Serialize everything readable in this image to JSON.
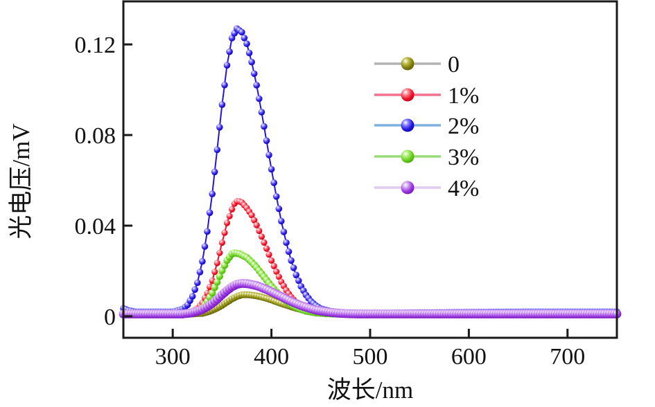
{
  "figure": {
    "background": "#ffffff",
    "frame_color": "#1a1a1a"
  },
  "chart_data": {
    "type": "line",
    "title": "",
    "xlabel": "波长/nm",
    "ylabel": "光电压/mV",
    "xlim": [
      250,
      750
    ],
    "ylim": [
      -0.0095,
      0.139
    ],
    "grid": false,
    "legend_position": "upper-right-inside",
    "x_ticks": [
      300,
      400,
      500,
      600,
      700
    ],
    "x_tick_labels": [
      "300",
      "400",
      "500",
      "600",
      "700"
    ],
    "y_ticks": [
      0,
      0.04,
      0.08,
      0.12
    ],
    "y_tick_labels": [
      "0",
      "0.04",
      "0.08",
      "0.12"
    ],
    "series": [
      {
        "name": "0",
        "peak_x_nm": 373,
        "peak_y_mV": 0.0095,
        "color": "#7d7d10",
        "color_light": "#bcbc42",
        "color_dark": "#565606",
        "legend_line_color": "#b3b3b3",
        "marker_radius": 5.0,
        "points": [
          [
            250,
            0.0008
          ],
          [
            310,
            0.0008
          ],
          [
            320,
            0.001
          ],
          [
            330,
            0.0013
          ],
          [
            335,
            0.0018
          ],
          [
            340,
            0.0026
          ],
          [
            345,
            0.0036
          ],
          [
            350,
            0.0048
          ],
          [
            355,
            0.0062
          ],
          [
            360,
            0.0076
          ],
          [
            365,
            0.0087
          ],
          [
            370,
            0.0094
          ],
          [
            373,
            0.0095
          ],
          [
            378,
            0.0094
          ],
          [
            385,
            0.009
          ],
          [
            390,
            0.0085
          ],
          [
            395,
            0.0079
          ],
          [
            400,
            0.0072
          ],
          [
            405,
            0.0064
          ],
          [
            410,
            0.0056
          ],
          [
            415,
            0.0049
          ],
          [
            420,
            0.0042
          ],
          [
            425,
            0.0035
          ],
          [
            430,
            0.003
          ],
          [
            435,
            0.0026
          ],
          [
            440,
            0.0022
          ],
          [
            450,
            0.0016
          ],
          [
            460,
            0.0012
          ],
          [
            470,
            0.0009
          ],
          [
            480,
            0.0007
          ],
          [
            750,
            0.0007
          ]
        ]
      },
      {
        "name": "1%",
        "peak_x_nm": 366,
        "peak_y_mV": 0.051,
        "color": "#ee1025",
        "color_light": "#ff7f8c",
        "color_dark": "#a80014",
        "legend_line_color": "#f4708f",
        "marker_radius": 4.6,
        "points": [
          [
            250,
            0.0012
          ],
          [
            310,
            0.0012
          ],
          [
            315,
            0.0014
          ],
          [
            320,
            0.0021
          ],
          [
            325,
            0.0035
          ],
          [
            330,
            0.006
          ],
          [
            335,
            0.0102
          ],
          [
            340,
            0.0157
          ],
          [
            345,
            0.0235
          ],
          [
            350,
            0.0325
          ],
          [
            355,
            0.0412
          ],
          [
            360,
            0.0472
          ],
          [
            363,
            0.0502
          ],
          [
            366,
            0.051
          ],
          [
            370,
            0.0502
          ],
          [
            375,
            0.0478
          ],
          [
            380,
            0.0446
          ],
          [
            385,
            0.0402
          ],
          [
            390,
            0.0352
          ],
          [
            395,
            0.0299
          ],
          [
            400,
            0.0246
          ],
          [
            405,
            0.0197
          ],
          [
            410,
            0.0152
          ],
          [
            415,
            0.0115
          ],
          [
            420,
            0.0085
          ],
          [
            425,
            0.0061
          ],
          [
            430,
            0.0044
          ],
          [
            435,
            0.0032
          ],
          [
            440,
            0.0024
          ],
          [
            450,
            0.0015
          ],
          [
            460,
            0.0013
          ],
          [
            560,
            0.0013
          ],
          [
            580,
            0.0017
          ],
          [
            650,
            0.0017
          ],
          [
            670,
            0.0013
          ],
          [
            750,
            0.0013
          ]
        ]
      },
      {
        "name": "2%",
        "peak_x_nm": 365,
        "peak_y_mV": 0.127,
        "color": "#2214dd",
        "color_light": "#8078ff",
        "color_dark": "#12049a",
        "legend_line_color": "#7fb2e0",
        "marker_radius": 4.8,
        "points": [
          [
            250,
            0.0035
          ],
          [
            255,
            0.0026
          ],
          [
            262,
            0.002
          ],
          [
            300,
            0.002
          ],
          [
            310,
            0.0032
          ],
          [
            315,
            0.005
          ],
          [
            320,
            0.0088
          ],
          [
            325,
            0.0148
          ],
          [
            330,
            0.0242
          ],
          [
            335,
            0.0374
          ],
          [
            340,
            0.054
          ],
          [
            345,
            0.0735
          ],
          [
            350,
            0.0934
          ],
          [
            355,
            0.1108
          ],
          [
            360,
            0.1228
          ],
          [
            365,
            0.127
          ],
          [
            370,
            0.1254
          ],
          [
            375,
            0.1203
          ],
          [
            380,
            0.1122
          ],
          [
            385,
            0.102
          ],
          [
            390,
            0.0901
          ],
          [
            395,
            0.0775
          ],
          [
            400,
            0.0649
          ],
          [
            405,
            0.0529
          ],
          [
            410,
            0.042
          ],
          [
            415,
            0.0325
          ],
          [
            420,
            0.0246
          ],
          [
            425,
            0.0182
          ],
          [
            430,
            0.0132
          ],
          [
            435,
            0.0094
          ],
          [
            440,
            0.0066
          ],
          [
            445,
            0.0047
          ],
          [
            450,
            0.0034
          ],
          [
            460,
            0.0022
          ],
          [
            470,
            0.0017
          ],
          [
            480,
            0.0015
          ],
          [
            520,
            0.0015
          ],
          [
            660,
            0.002
          ],
          [
            750,
            0.002
          ]
        ]
      },
      {
        "name": "3%",
        "peak_x_nm": 363,
        "peak_y_mV": 0.028,
        "color": "#64cc1b",
        "color_light": "#aaee70",
        "color_dark": "#3d9206",
        "legend_line_color": "#98dc78",
        "marker_radius": 5.2,
        "points": [
          [
            250,
            0.001
          ],
          [
            312,
            0.001
          ],
          [
            320,
            0.0014
          ],
          [
            325,
            0.0022
          ],
          [
            330,
            0.0038
          ],
          [
            335,
            0.0065
          ],
          [
            340,
            0.0103
          ],
          [
            345,
            0.0151
          ],
          [
            350,
            0.0202
          ],
          [
            355,
            0.0247
          ],
          [
            360,
            0.0275
          ],
          [
            363,
            0.028
          ],
          [
            368,
            0.0275
          ],
          [
            375,
            0.0259
          ],
          [
            380,
            0.0239
          ],
          [
            385,
            0.0215
          ],
          [
            390,
            0.0188
          ],
          [
            395,
            0.016
          ],
          [
            400,
            0.0133
          ],
          [
            405,
            0.0108
          ],
          [
            410,
            0.0085
          ],
          [
            415,
            0.0066
          ],
          [
            420,
            0.005
          ],
          [
            425,
            0.0039
          ],
          [
            430,
            0.003
          ],
          [
            435,
            0.0023
          ],
          [
            445,
            0.0015
          ],
          [
            455,
            0.0012
          ],
          [
            465,
            0.001
          ],
          [
            600,
            0.0014
          ],
          [
            615,
            0.001
          ],
          [
            750,
            0.001
          ]
        ]
      },
      {
        "name": "4%",
        "peak_x_nm": 370,
        "peak_y_mV": 0.0145,
        "color": "#9430dd",
        "color_light": "#cf9af2",
        "color_dark": "#64109e",
        "legend_line_color": "#e2cbf2",
        "marker_radius": 6.4,
        "points": [
          [
            250,
            0.001
          ],
          [
            310,
            0.001
          ],
          [
            320,
            0.0016
          ],
          [
            325,
            0.0022
          ],
          [
            330,
            0.003
          ],
          [
            335,
            0.0042
          ],
          [
            340,
            0.0057
          ],
          [
            345,
            0.0075
          ],
          [
            350,
            0.0095
          ],
          [
            355,
            0.0114
          ],
          [
            360,
            0.013
          ],
          [
            365,
            0.0141
          ],
          [
            370,
            0.0145
          ],
          [
            375,
            0.0144
          ],
          [
            380,
            0.014
          ],
          [
            385,
            0.0135
          ],
          [
            390,
            0.0127
          ],
          [
            395,
            0.0118
          ],
          [
            400,
            0.0108
          ],
          [
            405,
            0.0097
          ],
          [
            410,
            0.0087
          ],
          [
            415,
            0.0076
          ],
          [
            420,
            0.0065
          ],
          [
            425,
            0.0056
          ],
          [
            430,
            0.0047
          ],
          [
            435,
            0.004
          ],
          [
            440,
            0.0033
          ],
          [
            445,
            0.0027
          ],
          [
            450,
            0.0023
          ],
          [
            460,
            0.0017
          ],
          [
            470,
            0.0013
          ],
          [
            480,
            0.0011
          ],
          [
            490,
            0.001
          ],
          [
            750,
            0.001
          ]
        ]
      }
    ]
  }
}
